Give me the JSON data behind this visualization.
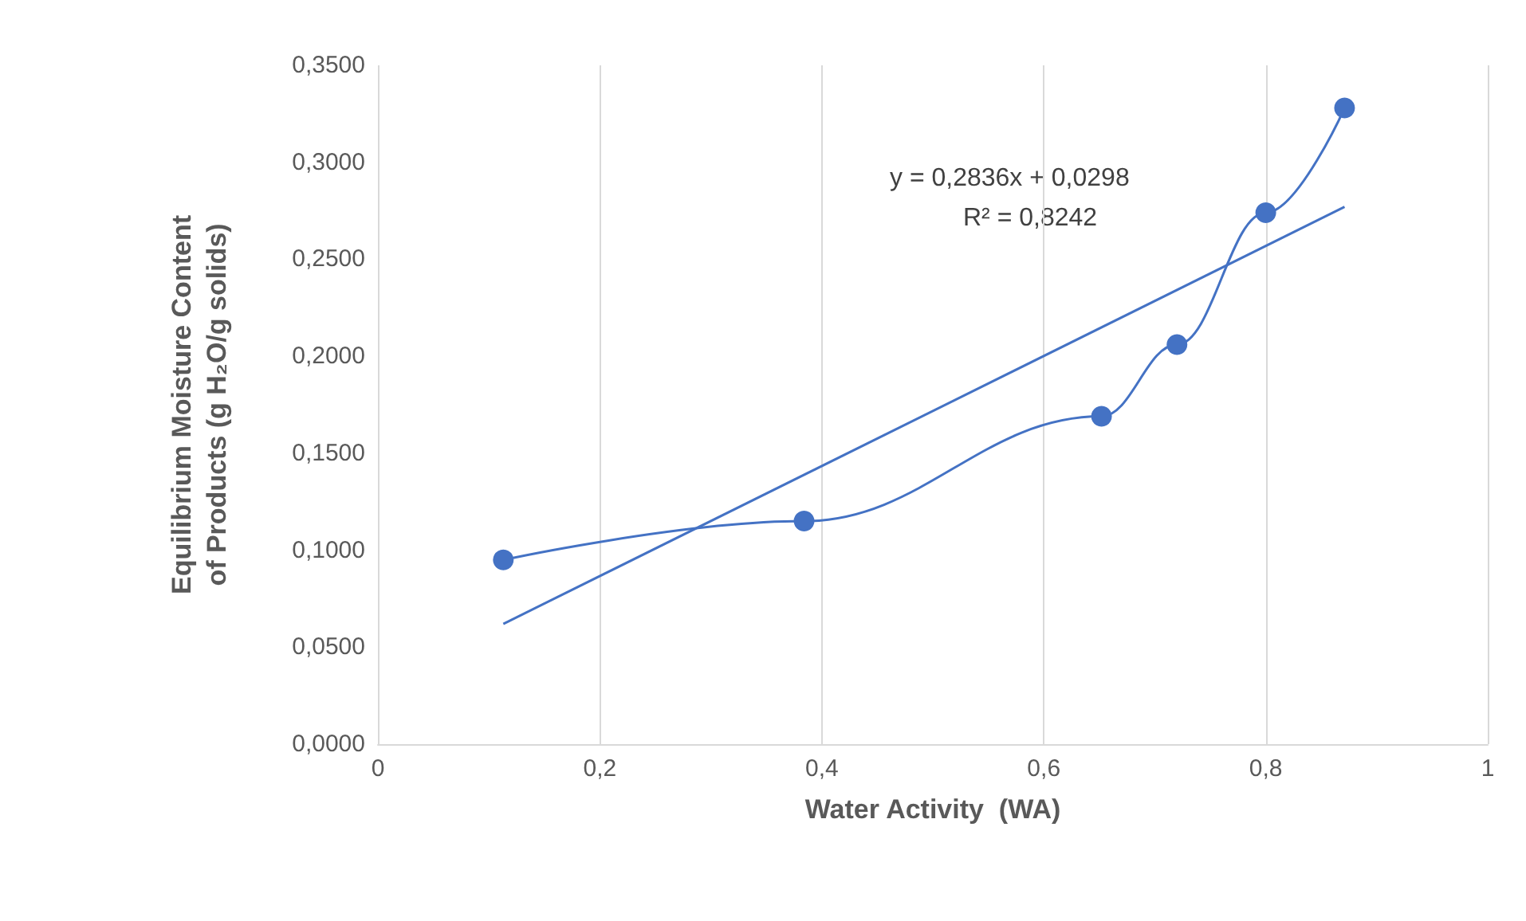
{
  "chart_data": {
    "type": "line",
    "xlabel": "Water Activity  (WA)",
    "ylabel": "Equilibrium Moisture Content of Products (g H₂O/g solids)",
    "series": [
      {
        "color": "#4472c4",
        "marker": "circle",
        "x": [
          0.113,
          0.384,
          0.652,
          0.72,
          0.8,
          0.871
        ],
        "values": [
          0.095,
          0.115,
          0.169,
          0.206,
          0.274,
          0.328
        ]
      },
      {
        "color": "#4472c4",
        "marker": "none",
        "x": [
          0.113,
          0.871
        ],
        "values": [
          0.062,
          0.277
        ]
      }
    ],
    "annotations": [
      "y = 0,2836x + 0,0298",
      "R² = 0,8242"
    ],
    "xlim": [
      0,
      1
    ],
    "xticks": [
      0,
      {
        "value": 0.2,
        "label": "0,2"
      },
      {
        "value": 0.4,
        "label": "0,4"
      },
      {
        "value": 0.6,
        "label": "0,6"
      },
      {
        "value": 0.8,
        "label": "0,8"
      },
      1
    ],
    "ylim": [
      0,
      0.35
    ],
    "yticks": [
      {
        "value": 0,
        "label": "0,0000"
      },
      {
        "value": 0.05,
        "label": "0,0500"
      },
      {
        "value": 0.1,
        "label": "0,1000"
      },
      {
        "value": 0.15,
        "label": "0,1500"
      },
      {
        "value": 0.2,
        "label": "0,2000"
      },
      {
        "value": 0.25,
        "label": "0,2500"
      },
      {
        "value": 0.3,
        "label": "0,3000"
      },
      {
        "value": 0.35,
        "label": "0,3500"
      }
    ],
    "grid": "x"
  }
}
